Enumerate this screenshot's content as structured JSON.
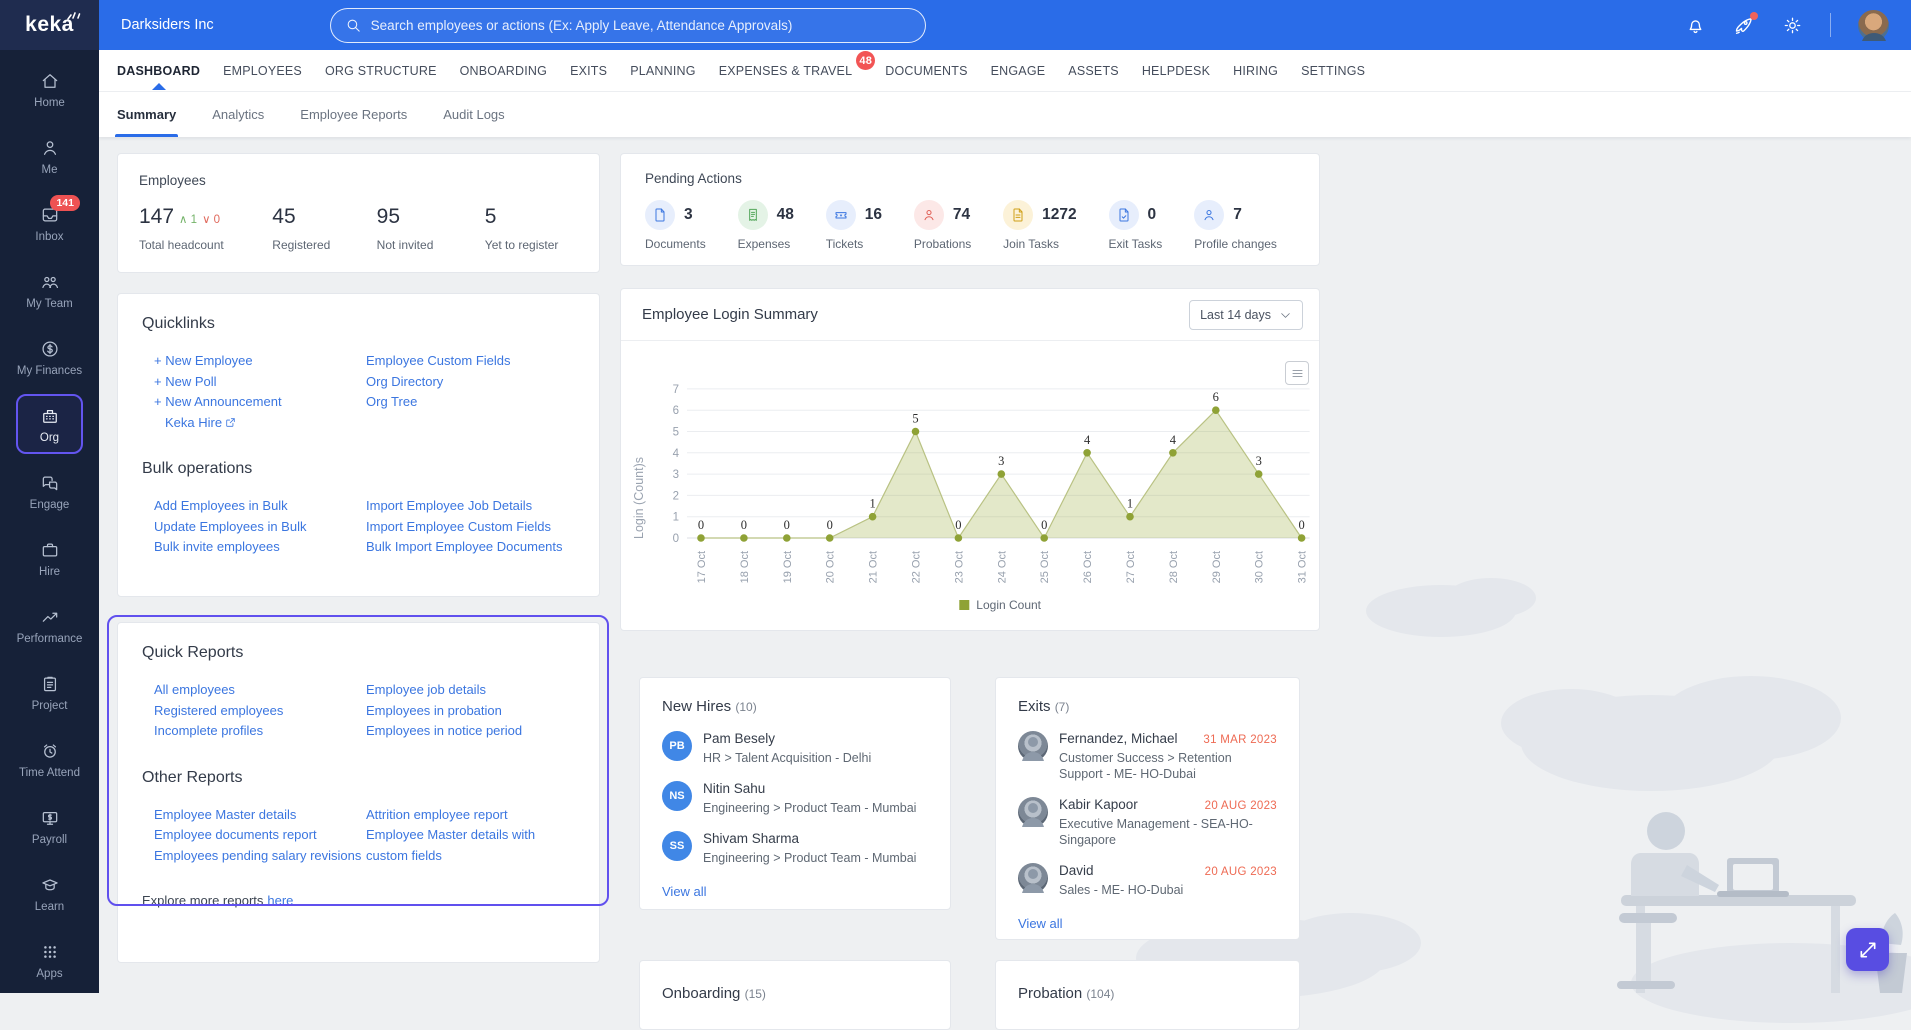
{
  "colors": {
    "topbar_blue": "#2a6ce8",
    "sidebar_navy": "#162138",
    "accent_purple": "#6050ee",
    "link_blue": "#3b76e0",
    "badge_red": "#ee5253",
    "exit_date_red": "#ee6a53",
    "chart_olive": "#8fa236"
  },
  "topbar": {
    "logo_text": "keka",
    "company_name": "Darksiders Inc",
    "search_placeholder": "Search employees or actions (Ex: Apply Leave, Attendance Approvals)"
  },
  "sidebar": {
    "items": [
      {
        "label": "Home",
        "icon": "home"
      },
      {
        "label": "Me",
        "icon": "user"
      },
      {
        "label": "Inbox",
        "icon": "inbox",
        "badge": "141"
      },
      {
        "label": "My Team",
        "icon": "team"
      },
      {
        "label": "My Finances",
        "icon": "finance"
      },
      {
        "label": "Org",
        "icon": "org",
        "active": true
      },
      {
        "label": "Engage",
        "icon": "engage"
      },
      {
        "label": "Hire",
        "icon": "hire"
      },
      {
        "label": "Performance",
        "icon": "performance"
      },
      {
        "label": "Project",
        "icon": "project"
      },
      {
        "label": "Time Attend",
        "icon": "time"
      },
      {
        "label": "Payroll",
        "icon": "payroll"
      },
      {
        "label": "Learn",
        "icon": "learn"
      },
      {
        "label": "Apps",
        "icon": "apps"
      }
    ]
  },
  "nav": {
    "tabs": [
      {
        "label": "DASHBOARD",
        "active": true
      },
      {
        "label": "EMPLOYEES"
      },
      {
        "label": "ORG STRUCTURE"
      },
      {
        "label": "ONBOARDING"
      },
      {
        "label": "EXITS"
      },
      {
        "label": "PLANNING"
      },
      {
        "label": "EXPENSES & TRAVEL",
        "badge": "48"
      },
      {
        "label": "DOCUMENTS"
      },
      {
        "label": "ENGAGE"
      },
      {
        "label": "ASSETS"
      },
      {
        "label": "HELPDESK"
      },
      {
        "label": "HIRING"
      },
      {
        "label": "SETTINGS"
      }
    ],
    "subtabs": [
      {
        "label": "Summary",
        "active": true
      },
      {
        "label": "Analytics"
      },
      {
        "label": "Employee Reports"
      },
      {
        "label": "Audit Logs"
      }
    ]
  },
  "employees": {
    "title": "Employees",
    "stats": [
      {
        "value": "147",
        "label": "Total headcount",
        "delta_up": "1",
        "delta_down": "0",
        "width": 143
      },
      {
        "value": "45",
        "label": "Registered",
        "width": 112
      },
      {
        "value": "95",
        "label": "Not invited",
        "width": 116
      },
      {
        "value": "5",
        "label": "Yet to register",
        "width": 100
      }
    ]
  },
  "pending_actions": {
    "title": "Pending Actions",
    "items": [
      {
        "count": "3",
        "label": "Documents",
        "icon": "file",
        "tone": "blue"
      },
      {
        "count": "48",
        "label": "Expenses",
        "icon": "receipt",
        "tone": "green"
      },
      {
        "count": "16",
        "label": "Tickets",
        "icon": "ticket",
        "tone": "blue"
      },
      {
        "count": "74",
        "label": "Probations",
        "icon": "person",
        "tone": "red"
      },
      {
        "count": "1272",
        "label": "Join Tasks",
        "icon": "file-lines",
        "tone": "amber"
      },
      {
        "count": "0",
        "label": "Exit Tasks",
        "icon": "file-check",
        "tone": "blue"
      },
      {
        "count": "7",
        "label": "Profile changes",
        "icon": "person",
        "tone": "blue"
      }
    ]
  },
  "quicklinks": {
    "title": "Quicklinks",
    "col1": [
      {
        "label": "+ New Employee"
      },
      {
        "label": "+ New Poll"
      },
      {
        "label": "+ New Announcement"
      },
      {
        "label": "Keka Hire",
        "external": true,
        "indent": true
      }
    ],
    "col2": [
      {
        "label": "Employee Custom Fields"
      },
      {
        "label": "Org Directory"
      },
      {
        "label": "Org Tree"
      }
    ],
    "bulk_title": "Bulk operations",
    "bulk_col1": [
      {
        "label": "Add Employees in Bulk"
      },
      {
        "label": "Update Employees in Bulk"
      },
      {
        "label": "Bulk invite employees"
      }
    ],
    "bulk_col2": [
      {
        "label": "Import Employee Job Details"
      },
      {
        "label": "Import Employee Custom Fields"
      },
      {
        "label": "Bulk Import Employee Documents"
      }
    ]
  },
  "reports": {
    "quick_title": "Quick Reports",
    "quick_col1": [
      {
        "label": "All employees"
      },
      {
        "label": "Registered employees"
      },
      {
        "label": "Incomplete profiles"
      }
    ],
    "quick_col2": [
      {
        "label": "Employee job details"
      },
      {
        "label": "Employees in probation"
      },
      {
        "label": "Employees in notice period"
      }
    ],
    "other_title": "Other Reports",
    "other_col1": [
      {
        "label": "Employee Master details"
      },
      {
        "label": "Employee documents report"
      },
      {
        "label": "Employees pending salary revisions"
      }
    ],
    "other_col2": [
      {
        "label": "Attrition employee report"
      },
      {
        "label": "Employee Master details with custom fields"
      }
    ],
    "explore_text": "Explore more reports",
    "explore_link": "here"
  },
  "login_summary": {
    "title": "Employee Login Summary",
    "range_label": "Last 14 days",
    "legend": "Login Count"
  },
  "chart_data": {
    "type": "area",
    "title": "Employee Login Summary",
    "x": [
      "17 Oct",
      "18 Oct",
      "19 Oct",
      "20 Oct",
      "21 Oct",
      "22 Oct",
      "23 Oct",
      "24 Oct",
      "25 Oct",
      "26 Oct",
      "27 Oct",
      "28 Oct",
      "29 Oct",
      "30 Oct",
      "31 Oct"
    ],
    "series": [
      {
        "name": "Login Count",
        "values": [
          0,
          0,
          0,
          0,
          1,
          5,
          0,
          3,
          0,
          4,
          1,
          4,
          6,
          3,
          0
        ]
      }
    ],
    "ylabel": "Login (Count)s",
    "xlabel": "",
    "ylim": [
      0,
      7
    ],
    "yticks": [
      0,
      1,
      2,
      3,
      4,
      5,
      6,
      7
    ],
    "grid": true,
    "legend_position": "bottom",
    "range_selector": "Last 14 days",
    "point_color": "#8fa236",
    "line_color": "#b9c283",
    "fill_color": "rgba(154,171,60,0.28)"
  },
  "new_hires": {
    "title": "New Hires",
    "count": "(10)",
    "view_all": "View all",
    "items": [
      {
        "initials": "PB",
        "name": "Pam Besely",
        "detail": "HR > Talent Acquisition - Delhi"
      },
      {
        "initials": "NS",
        "name": "Nitin Sahu",
        "detail": "Engineering > Product Team - Mumbai"
      },
      {
        "initials": "SS",
        "name": "Shivam Sharma",
        "detail": "Engineering > Product Team - Mumbai"
      }
    ]
  },
  "exits": {
    "title": "Exits",
    "count": "(7)",
    "view_all": "View all",
    "items": [
      {
        "name": "Fernandez, Michael",
        "date": "31 MAR 2023",
        "detail": "Customer Success > Retention Support - ME- HO-Dubai"
      },
      {
        "name": "Kabir Kapoor",
        "date": "20 AUG 2023",
        "detail": "Executive Management - SEA-HO-Singapore"
      },
      {
        "name": "David",
        "date": "20 AUG 2023",
        "detail": "Sales - ME- HO-Dubai"
      }
    ]
  },
  "partial_cards": [
    {
      "title": "Onboarding",
      "count": "(15)"
    },
    {
      "title": "Probation",
      "count": "(104)"
    }
  ]
}
